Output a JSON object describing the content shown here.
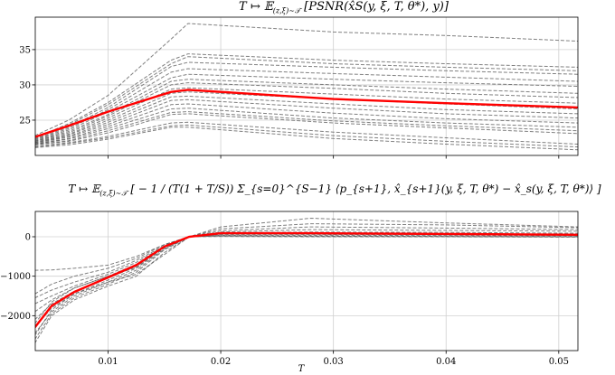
{
  "chart_data": [
    {
      "type": "line",
      "title": {
        "main": "T ↦ 𝔼",
        "sub": "(z,ξ)∼𝒯",
        "rest": " [PSNR(x̂S(y, ξ, T, θ*), y)]"
      },
      "xlabel": "",
      "ylabel": "",
      "xlim": [
        0.00354,
        0.0517
      ],
      "ylim": [
        20,
        39.6
      ],
      "grid": true,
      "xticks": [
        0.01,
        0.02,
        0.03,
        0.04,
        0.05
      ],
      "xtick_labels": [
        "",
        "",
        "",
        "",
        ""
      ],
      "yticks": [
        25,
        30,
        35
      ],
      "ytick_labels": [
        "25",
        "30",
        "35"
      ],
      "x": [
        0.0035,
        0.0065,
        0.01,
        0.0156,
        0.0171,
        0.03,
        0.04,
        0.0517
      ],
      "samples_style": {
        "color": "#555555",
        "dash": "dashed"
      },
      "samples": [
        [
          22.8,
          25.0,
          28.5,
          36.5,
          38.7,
          37.5,
          37.0,
          36.2
        ],
        [
          22.5,
          24.5,
          27.5,
          33.5,
          34.4,
          33.5,
          33.0,
          32.5
        ],
        [
          22.4,
          24.3,
          27.2,
          33.0,
          34.0,
          33.0,
          32.5,
          32.0
        ],
        [
          22.3,
          24.0,
          26.8,
          32.6,
          33.2,
          32.5,
          32.0,
          31.5
        ],
        [
          22.2,
          23.8,
          26.5,
          31.8,
          32.3,
          31.6,
          31.1,
          30.5
        ],
        [
          22.1,
          23.6,
          26.2,
          31.0,
          31.5,
          30.8,
          30.3,
          29.8
        ],
        [
          22.0,
          23.4,
          25.8,
          30.5,
          30.8,
          30.0,
          29.4,
          28.8
        ],
        [
          22.0,
          23.2,
          25.6,
          30.0,
          30.3,
          29.5,
          28.8,
          28.2
        ],
        [
          21.9,
          23.0,
          25.3,
          29.4,
          29.6,
          28.7,
          28.0,
          27.4
        ],
        [
          21.8,
          22.9,
          25.0,
          28.8,
          29.0,
          28.0,
          27.3,
          26.6
        ],
        [
          21.8,
          22.7,
          24.7,
          28.3,
          28.4,
          27.3,
          26.5,
          25.9
        ],
        [
          21.7,
          22.6,
          24.4,
          27.8,
          27.9,
          26.7,
          25.9,
          25.3
        ],
        [
          21.6,
          22.4,
          24.1,
          27.2,
          27.3,
          26.0,
          25.2,
          24.6
        ],
        [
          21.6,
          22.3,
          23.8,
          26.6,
          26.7,
          25.3,
          24.6,
          24.0
        ],
        [
          21.5,
          22.1,
          23.5,
          26.1,
          26.2,
          24.9,
          24.2,
          23.5
        ],
        [
          21.5,
          22.0,
          23.2,
          25.8,
          25.9,
          24.6,
          23.9,
          23.1
        ],
        [
          21.3,
          21.8,
          22.7,
          24.6,
          24.7,
          23.3,
          22.5,
          21.6
        ],
        [
          21.2,
          21.7,
          22.5,
          24.2,
          24.3,
          22.8,
          22.0,
          21.2
        ],
        [
          21.1,
          21.5,
          22.3,
          24.0,
          24.0,
          22.4,
          21.6,
          20.8
        ]
      ],
      "mean_style": {
        "color": "#ff0000"
      },
      "mean": [
        22.6,
        24.2,
        26.2,
        29.0,
        29.3,
        28.0,
        27.4,
        26.8
      ]
    },
    {
      "type": "line",
      "title": {
        "main": "T ↦ 𝔼",
        "sub": "(z,ξ)∼𝒯",
        "rest": " [ − 1 / (T(1 + T/S)) Σ_{s=0}^{S−1} ⟨p_{s+1}, x̂_{s+1}(y, ξ, T, θ*) − x̂_s(y, ξ, T, θ*)⟩ ]"
      },
      "xlabel": "T",
      "ylabel": "",
      "xlim": [
        0.00354,
        0.0517
      ],
      "ylim": [
        -2885,
        641
      ],
      "grid": true,
      "xticks": [
        0.01,
        0.02,
        0.03,
        0.04,
        0.05
      ],
      "xtick_labels": [
        "0.01",
        "0.02",
        "0.03",
        "0.04",
        "0.05"
      ],
      "yticks": [
        -2000,
        -1000,
        0
      ],
      "ytick_labels": [
        "−2000",
        "−1000",
        "0"
      ],
      "x": [
        0.0035,
        0.005,
        0.007,
        0.01,
        0.0125,
        0.015,
        0.0172,
        0.02,
        0.028,
        0.04,
        0.0517
      ],
      "samples_style": {
        "color": "#555555",
        "dash": "dashed"
      },
      "samples": [
        [
          -850,
          -840,
          -800,
          -720,
          -500,
          -200,
          0,
          250,
          470,
          350,
          250
        ],
        [
          -1450,
          -1200,
          -1000,
          -800,
          -550,
          -200,
          0,
          200,
          330,
          300,
          230
        ],
        [
          -1550,
          -1350,
          -1150,
          -900,
          -600,
          -230,
          0,
          150,
          250,
          220,
          180
        ],
        [
          -1700,
          -1500,
          -1250,
          -950,
          -650,
          -240,
          0,
          120,
          180,
          160,
          140
        ],
        [
          -1900,
          -1600,
          -1300,
          -1000,
          -700,
          -250,
          0,
          100,
          120,
          110,
          90
        ],
        [
          -2100,
          -1700,
          -1380,
          -1050,
          -750,
          -270,
          0,
          80,
          90,
          70,
          60
        ],
        [
          -2300,
          -1800,
          -1450,
          -1100,
          -800,
          -290,
          0,
          60,
          60,
          50,
          40
        ],
        [
          -2450,
          -1900,
          -1500,
          -1150,
          -850,
          -310,
          0,
          40,
          40,
          30,
          20
        ],
        [
          -2600,
          -1950,
          -1550,
          -1200,
          -900,
          -330,
          0,
          20,
          20,
          10,
          0
        ],
        [
          -2700,
          -2000,
          -1600,
          -1250,
          -1000,
          -400,
          0,
          10,
          0,
          0,
          -10
        ],
        [
          -2500,
          -1850,
          -1450,
          -1150,
          -950,
          -450,
          0,
          30,
          10,
          5,
          0
        ],
        [
          -2200,
          -1650,
          -1300,
          -1000,
          -780,
          -260,
          0,
          70,
          100,
          80,
          60
        ]
      ],
      "mean_style": {
        "color": "#ff0000"
      },
      "mean": [
        -2300,
        -1750,
        -1400,
        -1030,
        -720,
        -250,
        0,
        90,
        90,
        70,
        50
      ]
    }
  ]
}
